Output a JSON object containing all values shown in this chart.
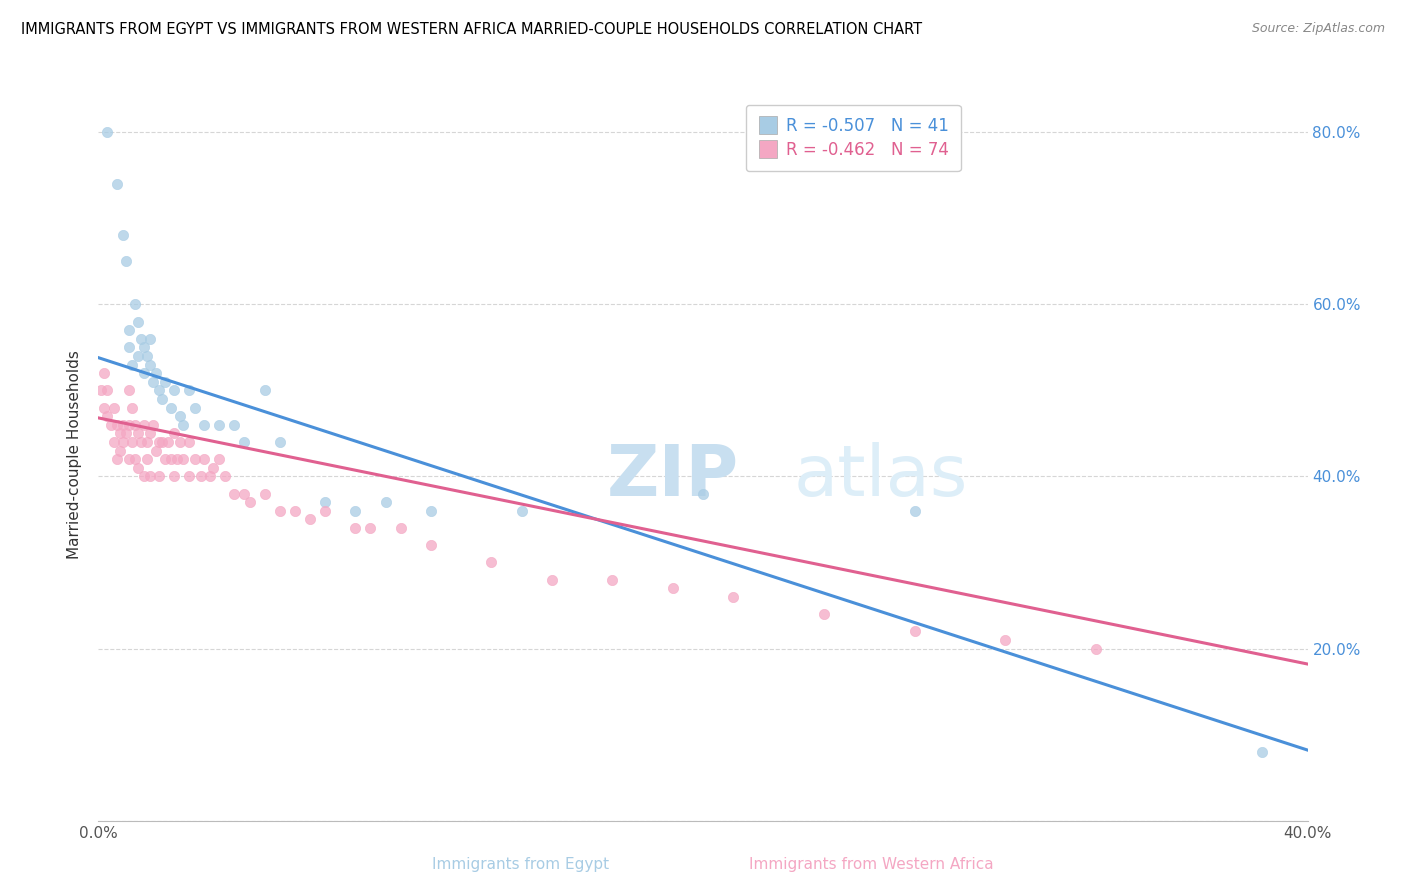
{
  "title": "IMMIGRANTS FROM EGYPT VS IMMIGRANTS FROM WESTERN AFRICA MARRIED-COUPLE HOUSEHOLDS CORRELATION CHART",
  "source": "Source: ZipAtlas.com",
  "xlabel_egypt": "Immigrants from Egypt",
  "xlabel_west_africa": "Immigrants from Western Africa",
  "ylabel": "Married-couple Households",
  "egypt_R": -0.507,
  "egypt_N": 41,
  "west_africa_R": -0.462,
  "west_africa_N": 74,
  "egypt_color": "#a8cce4",
  "west_africa_color": "#f4a7c3",
  "egypt_line_color": "#4a90d9",
  "west_africa_line_color": "#e06090",
  "watermark_zip": "ZIP",
  "watermark_atlas": "atlas",
  "xlim": [
    0.0,
    0.4
  ],
  "ylim": [
    0.0,
    0.85
  ],
  "x_ticks": [
    0.0,
    0.1,
    0.2,
    0.3,
    0.4
  ],
  "y_ticks": [
    0.0,
    0.2,
    0.4,
    0.6,
    0.8
  ],
  "egypt_scatter_x": [
    0.003,
    0.006,
    0.008,
    0.009,
    0.01,
    0.01,
    0.011,
    0.012,
    0.013,
    0.013,
    0.014,
    0.015,
    0.015,
    0.016,
    0.017,
    0.017,
    0.018,
    0.019,
    0.02,
    0.021,
    0.022,
    0.024,
    0.025,
    0.027,
    0.028,
    0.03,
    0.032,
    0.035,
    0.04,
    0.045,
    0.048,
    0.055,
    0.06,
    0.075,
    0.085,
    0.095,
    0.11,
    0.14,
    0.2,
    0.27,
    0.385
  ],
  "egypt_scatter_y": [
    0.8,
    0.74,
    0.68,
    0.65,
    0.55,
    0.57,
    0.53,
    0.6,
    0.58,
    0.54,
    0.56,
    0.55,
    0.52,
    0.54,
    0.56,
    0.53,
    0.51,
    0.52,
    0.5,
    0.49,
    0.51,
    0.48,
    0.5,
    0.47,
    0.46,
    0.5,
    0.48,
    0.46,
    0.46,
    0.46,
    0.44,
    0.5,
    0.44,
    0.37,
    0.36,
    0.37,
    0.36,
    0.36,
    0.38,
    0.36,
    0.08
  ],
  "west_africa_scatter_x": [
    0.001,
    0.002,
    0.002,
    0.003,
    0.003,
    0.004,
    0.005,
    0.005,
    0.006,
    0.006,
    0.007,
    0.007,
    0.008,
    0.008,
    0.009,
    0.01,
    0.01,
    0.01,
    0.011,
    0.011,
    0.012,
    0.012,
    0.013,
    0.013,
    0.014,
    0.015,
    0.015,
    0.016,
    0.016,
    0.017,
    0.017,
    0.018,
    0.019,
    0.02,
    0.02,
    0.021,
    0.022,
    0.023,
    0.024,
    0.025,
    0.025,
    0.026,
    0.027,
    0.028,
    0.03,
    0.03,
    0.032,
    0.034,
    0.035,
    0.037,
    0.038,
    0.04,
    0.042,
    0.045,
    0.048,
    0.05,
    0.055,
    0.06,
    0.065,
    0.07,
    0.075,
    0.085,
    0.09,
    0.1,
    0.11,
    0.13,
    0.15,
    0.17,
    0.19,
    0.21,
    0.24,
    0.27,
    0.3,
    0.33
  ],
  "west_africa_scatter_y": [
    0.5,
    0.52,
    0.48,
    0.47,
    0.5,
    0.46,
    0.48,
    0.44,
    0.46,
    0.42,
    0.45,
    0.43,
    0.46,
    0.44,
    0.45,
    0.5,
    0.46,
    0.42,
    0.48,
    0.44,
    0.46,
    0.42,
    0.45,
    0.41,
    0.44,
    0.46,
    0.4,
    0.44,
    0.42,
    0.45,
    0.4,
    0.46,
    0.43,
    0.44,
    0.4,
    0.44,
    0.42,
    0.44,
    0.42,
    0.45,
    0.4,
    0.42,
    0.44,
    0.42,
    0.44,
    0.4,
    0.42,
    0.4,
    0.42,
    0.4,
    0.41,
    0.42,
    0.4,
    0.38,
    0.38,
    0.37,
    0.38,
    0.36,
    0.36,
    0.35,
    0.36,
    0.34,
    0.34,
    0.34,
    0.32,
    0.3,
    0.28,
    0.28,
    0.27,
    0.26,
    0.24,
    0.22,
    0.21,
    0.2
  ],
  "egypt_line_x0": 0.0,
  "egypt_line_y0": 0.538,
  "egypt_line_x1": 0.4,
  "egypt_line_y1": 0.082,
  "wa_line_x0": 0.0,
  "wa_line_y0": 0.468,
  "wa_line_x1": 0.4,
  "wa_line_y1": 0.182
}
